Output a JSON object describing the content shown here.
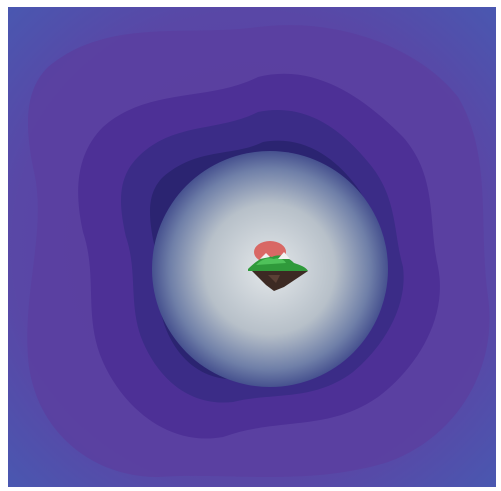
{
  "scene": {
    "kind": "tunnel-portal",
    "palette": {
      "frame": "#ffffff",
      "outer": "#4a57b0",
      "ring_purple": "#5a3fa0",
      "ring_violet": "#4b2f95",
      "ring_indigo": "#3a2c86",
      "ring_deep": "#2a2470",
      "halo": "#5e6fa3",
      "glow_center": "#e4e8ea",
      "glow_mid": "#b7c0c9",
      "island_grass": "#2f9a3b",
      "island_grass_light": "#4fc25a",
      "island_rock": "#3c2a23",
      "island_snow": "#f2f2f2",
      "sun": "#d9534f"
    },
    "icons": [
      "floating-island-icon",
      "setting-sun-icon"
    ]
  }
}
